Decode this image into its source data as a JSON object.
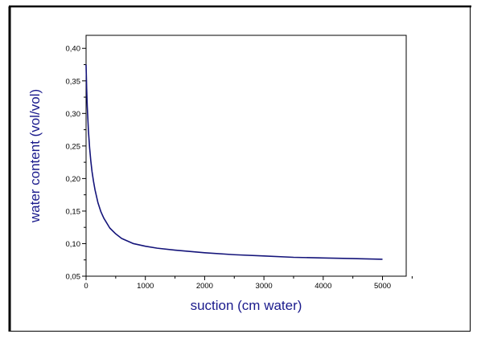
{
  "chart_data": {
    "type": "line",
    "title": "",
    "xlabel": "suction (cm water)",
    "ylabel": "water content (vol/vol)",
    "xlim": [
      0,
      5400
    ],
    "ylim": [
      0.05,
      0.42
    ],
    "x_ticks": [
      "0",
      "1000",
      "2000",
      "3000",
      "4000",
      "5000"
    ],
    "y_ticks": [
      "0,05",
      "0,10",
      "0,15",
      "0,20",
      "0,25",
      "0,30",
      "0,35",
      "0,40"
    ],
    "grid": false,
    "legend": "none",
    "series": [
      {
        "color": "#14147a",
        "x": [
          0,
          10,
          20,
          40,
          60,
          80,
          100,
          125,
          150,
          200,
          250,
          300,
          400,
          500,
          600,
          700,
          800,
          1000,
          1200,
          1500,
          2000,
          2500,
          3000,
          3500,
          4000,
          4500,
          5000
        ],
        "y": [
          0.375,
          0.338,
          0.311,
          0.273,
          0.247,
          0.227,
          0.211,
          0.196,
          0.183,
          0.163,
          0.149,
          0.139,
          0.124,
          0.115,
          0.108,
          0.104,
          0.1,
          0.096,
          0.093,
          0.09,
          0.086,
          0.083,
          0.081,
          0.079,
          0.078,
          0.077,
          0.076
        ]
      }
    ]
  }
}
